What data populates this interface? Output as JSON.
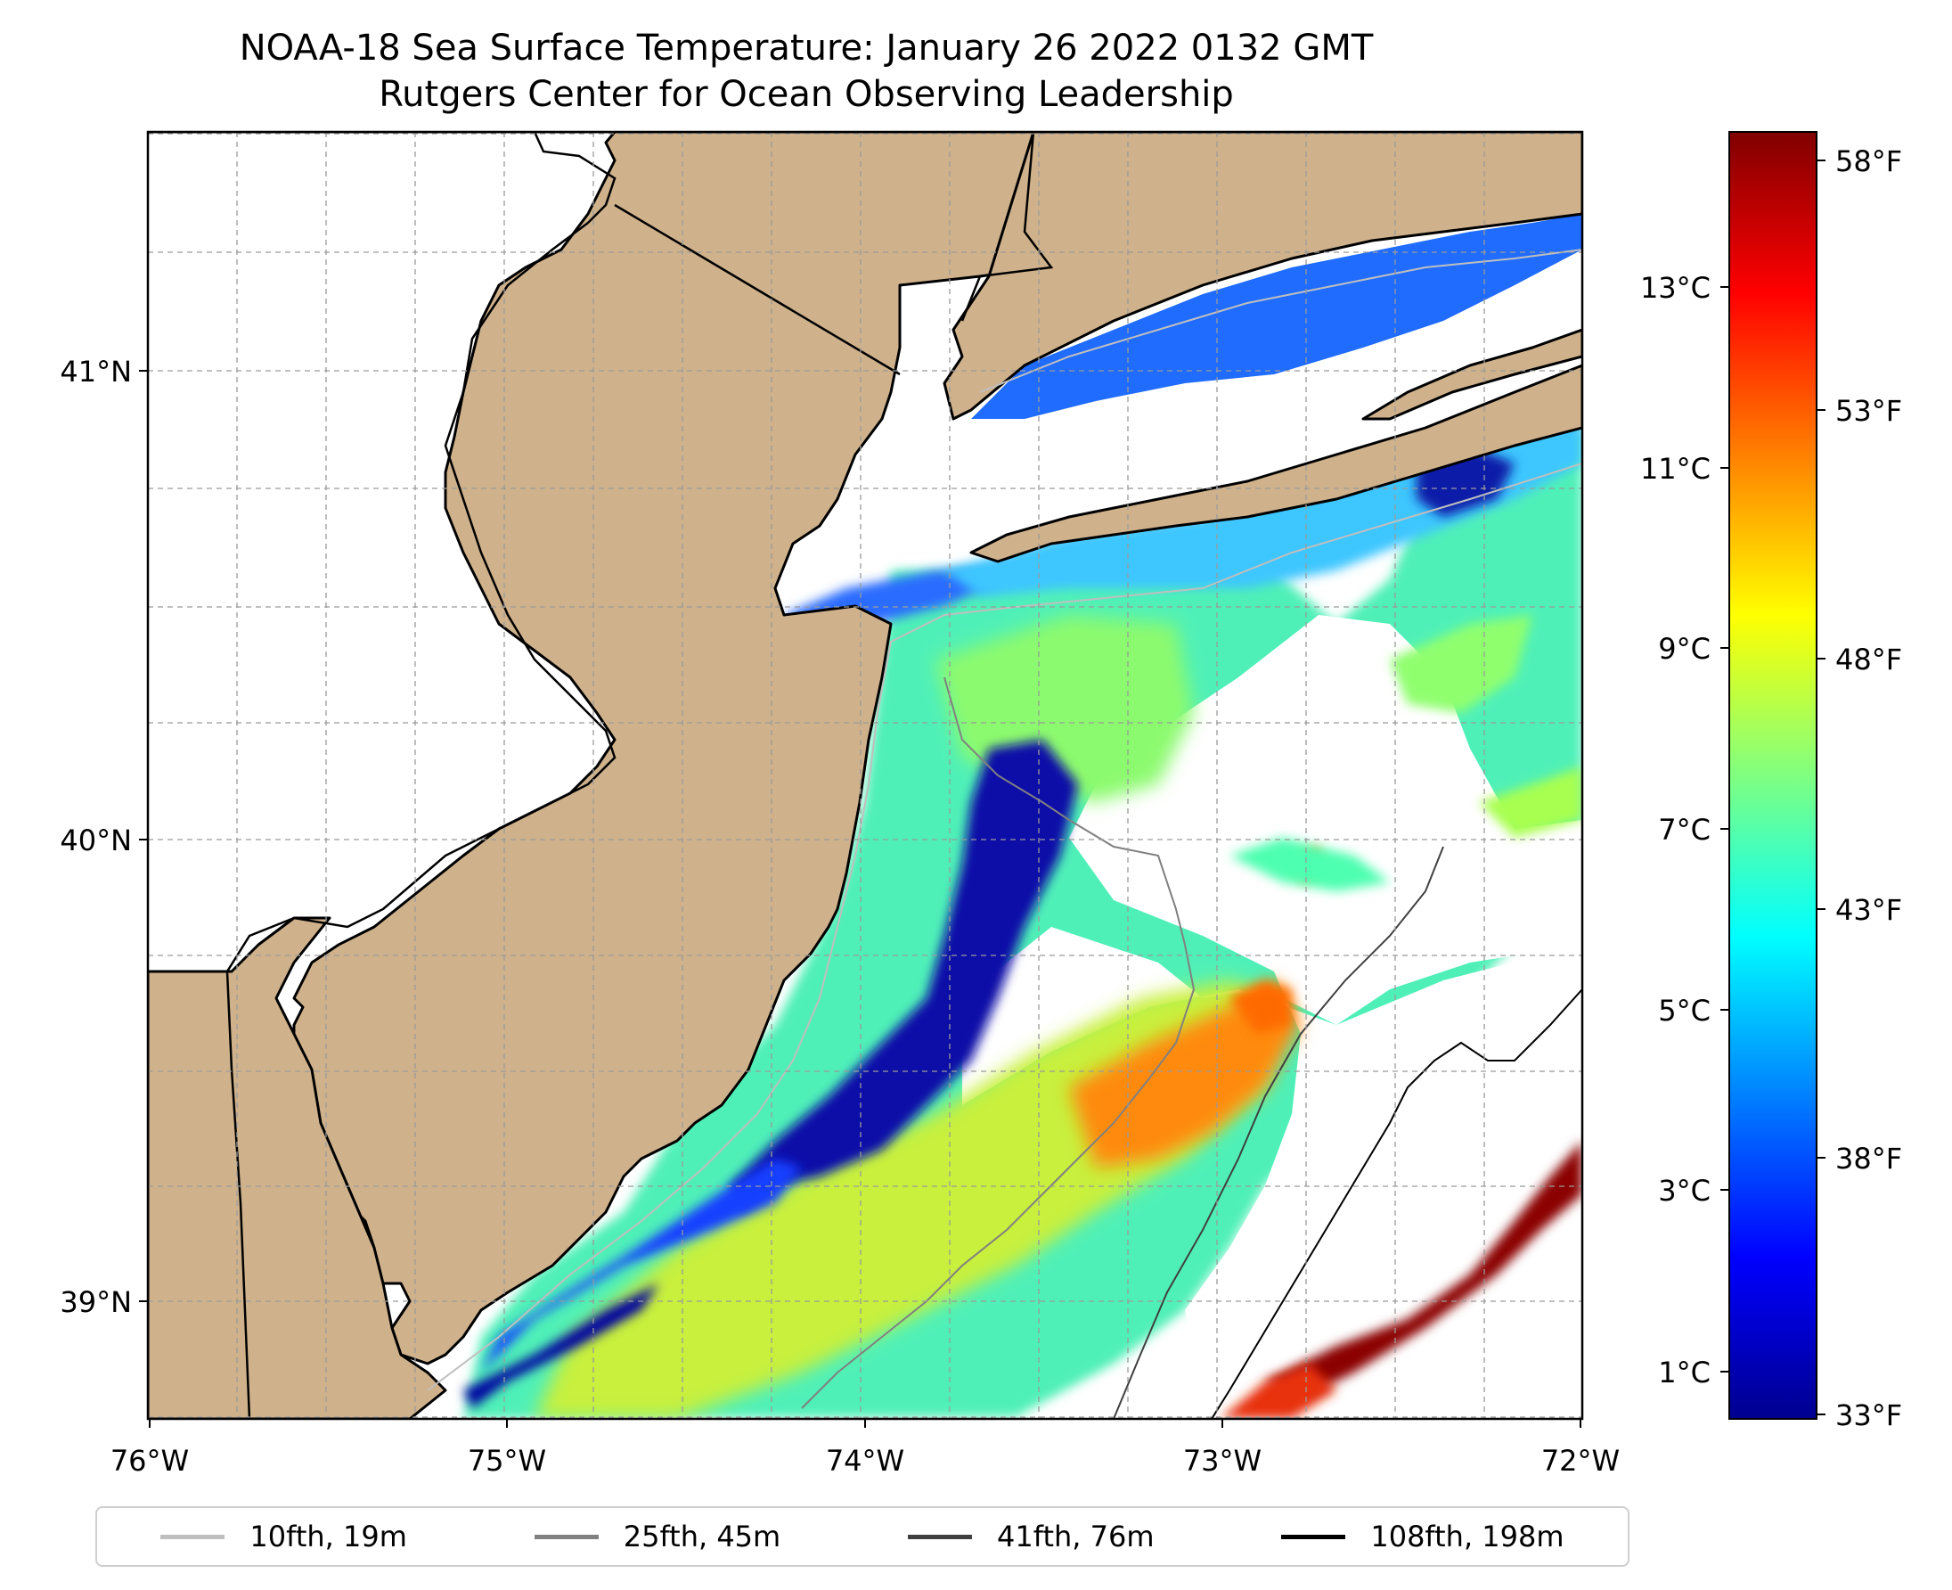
{
  "title": {
    "line1": "NOAA-18 Sea Surface Temperature: January 26 2022 0132 GMT",
    "line2": "Rutgers Center for Ocean Observing Leadership"
  },
  "map": {
    "lon_range": [
      -76,
      -72
    ],
    "lat_range": [
      38.7,
      41.5
    ],
    "x_ticks": [
      "76°W",
      "75°W",
      "74°W",
      "73°W",
      "72°W"
    ],
    "y_ticks": [
      "39°N",
      "40°N",
      "41°N"
    ],
    "gridlines": true,
    "land_color": "#cfb28c"
  },
  "colorbar": {
    "celsius_ticks": [
      "1°C",
      "3°C",
      "5°C",
      "7°C",
      "9°C",
      "11°C",
      "13°C"
    ],
    "fahrenheit_ticks": [
      "33°F",
      "38°F",
      "43°F",
      "48°F",
      "53°F",
      "58°F"
    ],
    "colormap": "jet"
  },
  "legend": {
    "items": [
      {
        "label": "10fth, 19m",
        "color": "#bfbfbf"
      },
      {
        "label": "25fth, 45m",
        "color": "#808080"
      },
      {
        "label": "41fth, 76m",
        "color": "#404040"
      },
      {
        "label": "108fth, 198m",
        "color": "#000000"
      }
    ]
  }
}
